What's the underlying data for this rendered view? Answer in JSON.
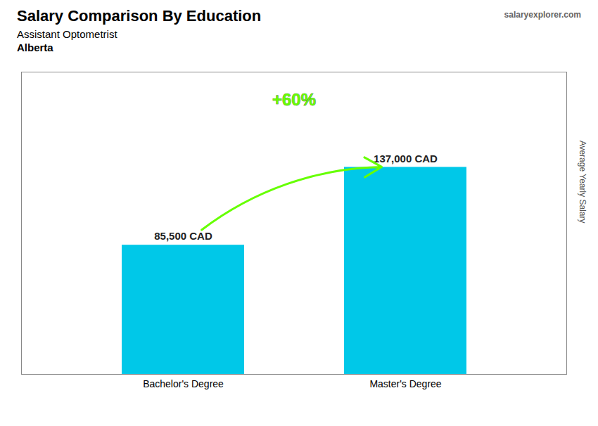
{
  "chart_data": {
    "type": "bar",
    "title": "Salary Comparison By Education",
    "subtitle": [
      "Assistant Optometrist",
      "Alberta"
    ],
    "y_label": "Average Yearly Salary",
    "categories": [
      "Bachelor's Degree",
      "Master's Degree"
    ],
    "values": [
      85500,
      137000
    ],
    "value_labels": [
      "85,500 CAD",
      "137,000 CAD"
    ],
    "data_labels": true,
    "color": "#00c8e8",
    "ylim": [
      0,
      200000
    ],
    "tick_labels": "x",
    "grid": false,
    "annotations": [
      {
        "text": "+60%",
        "color": "#66ff00"
      },
      {
        "text": "salaryexplorer.com"
      }
    ]
  }
}
